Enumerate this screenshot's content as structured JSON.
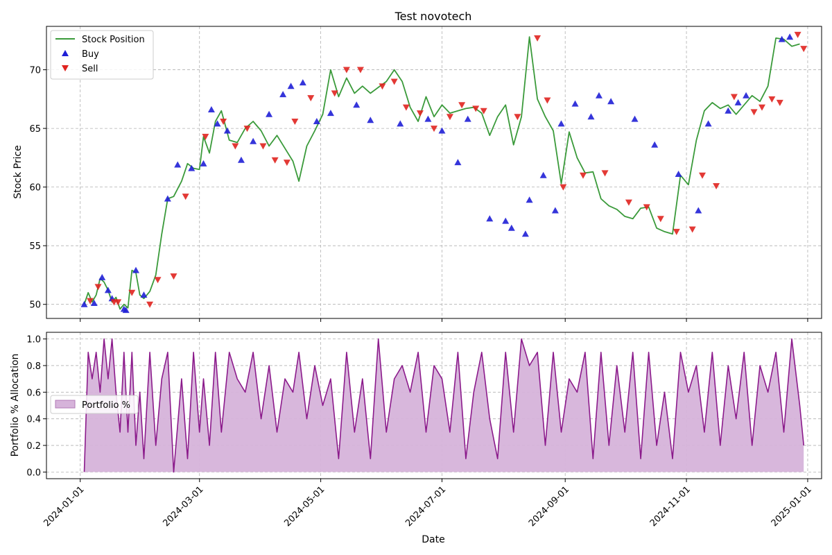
{
  "chart_data": [
    {
      "type": "line",
      "title": "Test novotech",
      "ylabel": "Stock Price",
      "xlabel": "",
      "xlim": [
        "2023-12-15",
        "2025-01-08"
      ],
      "ylim": [
        48.8,
        73.7
      ],
      "yticks": [
        50,
        55,
        60,
        65,
        70
      ],
      "grid": true,
      "legend": {
        "placement": "top-left",
        "entries": [
          "Stock Position",
          "Buy",
          "Sell"
        ]
      },
      "colors": {
        "line": "#3a9a3a",
        "buy": "#1f1fd6",
        "sell": "#e0231f"
      },
      "series": [
        {
          "name": "Stock Position",
          "x": [
            "2024-01-03",
            "2024-01-05",
            "2024-01-07",
            "2024-01-09",
            "2024-01-11",
            "2024-01-13",
            "2024-01-15",
            "2024-01-17",
            "2024-01-19",
            "2024-01-21",
            "2024-01-23",
            "2024-01-25",
            "2024-01-27",
            "2024-01-29",
            "2024-01-31",
            "2024-02-02",
            "2024-02-05",
            "2024-02-08",
            "2024-02-11",
            "2024-02-14",
            "2024-02-17",
            "2024-02-21",
            "2024-02-24",
            "2024-02-27",
            "2024-03-01",
            "2024-03-03",
            "2024-03-06",
            "2024-03-09",
            "2024-03-12",
            "2024-03-16",
            "2024-03-20",
            "2024-03-24",
            "2024-03-28",
            "2024-04-01",
            "2024-04-05",
            "2024-04-09",
            "2024-04-13",
            "2024-04-17",
            "2024-04-20",
            "2024-04-24",
            "2024-04-28",
            "2024-05-02",
            "2024-05-06",
            "2024-05-10",
            "2024-05-14",
            "2024-05-18",
            "2024-05-22",
            "2024-05-26",
            "2024-05-30",
            "2024-06-03",
            "2024-06-07",
            "2024-06-11",
            "2024-06-15",
            "2024-06-19",
            "2024-06-23",
            "2024-06-27",
            "2024-07-01",
            "2024-07-05",
            "2024-07-09",
            "2024-07-13",
            "2024-07-17",
            "2024-07-21",
            "2024-07-25",
            "2024-07-29",
            "2024-08-02",
            "2024-08-06",
            "2024-08-10",
            "2024-08-14",
            "2024-08-18",
            "2024-08-22",
            "2024-08-26",
            "2024-08-30",
            "2024-09-03",
            "2024-09-07",
            "2024-09-11",
            "2024-09-15",
            "2024-09-19",
            "2024-09-23",
            "2024-09-27",
            "2024-10-01",
            "2024-10-05",
            "2024-10-09",
            "2024-10-13",
            "2024-10-17",
            "2024-10-21",
            "2024-10-25",
            "2024-10-29",
            "2024-11-02",
            "2024-11-06",
            "2024-11-10",
            "2024-11-14",
            "2024-11-18",
            "2024-11-22",
            "2024-11-26",
            "2024-11-30",
            "2024-12-04",
            "2024-12-08",
            "2024-12-12",
            "2024-12-16",
            "2024-12-20",
            "2024-12-24",
            "2024-12-28"
          ],
          "values": [
            50.0,
            51.0,
            50.2,
            50.8,
            52.2,
            51.9,
            51.2,
            50.2,
            50.6,
            49.6,
            50.0,
            49.7,
            52.9,
            52.7,
            50.8,
            50.5,
            51.1,
            52.5,
            56.0,
            59.0,
            59.2,
            60.5,
            62.0,
            61.6,
            61.5,
            64.3,
            62.9,
            65.6,
            66.5,
            64.0,
            63.8,
            65.0,
            65.6,
            64.8,
            63.5,
            64.4,
            63.3,
            62.2,
            60.5,
            63.5,
            64.8,
            66.2,
            70.0,
            67.7,
            69.3,
            68.0,
            68.6,
            68.0,
            68.5,
            69.0,
            70.0,
            69.0,
            66.8,
            65.6,
            67.7,
            66.0,
            67.0,
            66.3,
            66.5,
            66.7,
            66.8,
            66.3,
            64.4,
            66.0,
            67.0,
            63.6,
            66.0,
            72.8,
            67.5,
            66.0,
            64.8,
            60.3,
            64.7,
            62.5,
            61.2,
            61.3,
            59.0,
            58.4,
            58.1,
            57.5,
            57.3,
            58.2,
            58.3,
            56.5,
            56.2,
            56.0,
            61.0,
            60.2,
            64.0,
            66.5,
            67.2,
            66.7,
            67.0,
            66.2,
            67.0,
            67.8,
            67.3,
            68.6,
            72.7,
            72.6,
            72.0,
            72.2
          ]
        },
        {
          "name": "Buy",
          "x": [
            "2024-01-03",
            "2024-01-08",
            "2024-01-12",
            "2024-01-15",
            "2024-01-17",
            "2024-01-23",
            "2024-01-24",
            "2024-01-29",
            "2024-02-02",
            "2024-02-14",
            "2024-02-19",
            "2024-02-26",
            "2024-03-03",
            "2024-03-07",
            "2024-03-10",
            "2024-03-15",
            "2024-03-22",
            "2024-03-28",
            "2024-04-05",
            "2024-04-12",
            "2024-04-16",
            "2024-04-22",
            "2024-04-29",
            "2024-05-06",
            "2024-05-19",
            "2024-05-26",
            "2024-06-10",
            "2024-06-24",
            "2024-07-01",
            "2024-07-09",
            "2024-07-14",
            "2024-07-25",
            "2024-08-02",
            "2024-08-05",
            "2024-08-12",
            "2024-08-14",
            "2024-08-21",
            "2024-08-27",
            "2024-08-30",
            "2024-09-06",
            "2024-09-14",
            "2024-09-18",
            "2024-09-24",
            "2024-10-06",
            "2024-10-16",
            "2024-10-28",
            "2024-11-07",
            "2024-11-12",
            "2024-11-22",
            "2024-11-27",
            "2024-12-01",
            "2024-12-19",
            "2024-12-23"
          ],
          "values": [
            50.0,
            50.1,
            52.3,
            51.2,
            50.5,
            49.6,
            49.5,
            52.9,
            50.8,
            59.0,
            61.9,
            61.6,
            62.0,
            66.6,
            65.4,
            64.8,
            62.3,
            63.9,
            66.2,
            67.9,
            68.6,
            68.9,
            65.6,
            66.3,
            67.0,
            65.7,
            65.4,
            65.8,
            64.8,
            62.1,
            65.8,
            57.3,
            57.1,
            56.5,
            56.0,
            58.9,
            61.0,
            58.0,
            65.4,
            67.1,
            66.0,
            67.8,
            67.3,
            65.8,
            63.6,
            61.1,
            58.0,
            65.4,
            66.5,
            67.2,
            67.8,
            72.6,
            72.8
          ]
        },
        {
          "name": "Sell",
          "x": [
            "2024-01-06",
            "2024-01-10",
            "2024-01-18",
            "2024-01-20",
            "2024-01-27",
            "2024-02-05",
            "2024-02-09",
            "2024-02-17",
            "2024-02-23",
            "2024-03-04",
            "2024-03-13",
            "2024-03-19",
            "2024-03-25",
            "2024-04-02",
            "2024-04-08",
            "2024-04-14",
            "2024-04-18",
            "2024-04-26",
            "2024-05-08",
            "2024-05-14",
            "2024-05-21",
            "2024-06-01",
            "2024-06-07",
            "2024-06-13",
            "2024-06-20",
            "2024-06-27",
            "2024-07-05",
            "2024-07-11",
            "2024-07-18",
            "2024-07-22",
            "2024-08-08",
            "2024-08-18",
            "2024-08-23",
            "2024-08-31",
            "2024-09-10",
            "2024-09-21",
            "2024-10-03",
            "2024-10-12",
            "2024-10-19",
            "2024-10-27",
            "2024-11-04",
            "2024-11-09",
            "2024-11-16",
            "2024-11-25",
            "2024-12-05",
            "2024-12-09",
            "2024-12-14",
            "2024-12-18",
            "2024-12-27",
            "2024-12-30"
          ],
          "values": [
            50.3,
            51.5,
            50.2,
            50.2,
            51.0,
            50.0,
            52.1,
            52.4,
            59.2,
            64.3,
            65.6,
            63.5,
            65.0,
            63.5,
            62.3,
            62.1,
            65.6,
            67.6,
            68.0,
            70.0,
            70.0,
            68.6,
            69.0,
            66.8,
            66.3,
            65.0,
            66.0,
            67.0,
            66.7,
            66.5,
            66.0,
            72.7,
            67.4,
            60.0,
            61.0,
            61.2,
            58.7,
            58.3,
            57.3,
            56.2,
            56.4,
            61.0,
            60.1,
            67.7,
            66.4,
            66.8,
            67.5,
            67.2,
            73.0,
            71.8
          ]
        }
      ]
    },
    {
      "type": "area",
      "ylabel": "Portfolio % Allocation",
      "xlabel": "Date",
      "xlim": [
        "2023-12-15",
        "2025-01-08"
      ],
      "ylim": [
        -0.05,
        1.05
      ],
      "yticks": [
        "0.0",
        "0.2",
        "0.4",
        "0.6",
        "0.8",
        "1.0"
      ],
      "xticks": [
        "2024-01-01",
        "2024-03-01",
        "2024-05-01",
        "2024-07-01",
        "2024-09-01",
        "2024-11-01",
        "2025-01-01"
      ],
      "grid": true,
      "legend": {
        "placement": "center-left",
        "entries": [
          "Portfolio %"
        ]
      },
      "colors": {
        "line": "#8b1a8b",
        "fill": "#d6b3da"
      },
      "series": [
        {
          "name": "Portfolio %",
          "x": [
            "2024-01-03",
            "2024-01-05",
            "2024-01-07",
            "2024-01-09",
            "2024-01-11",
            "2024-01-13",
            "2024-01-15",
            "2024-01-17",
            "2024-01-19",
            "2024-01-21",
            "2024-01-23",
            "2024-01-25",
            "2024-01-27",
            "2024-01-29",
            "2024-01-31",
            "2024-02-02",
            "2024-02-05",
            "2024-02-08",
            "2024-02-11",
            "2024-02-14",
            "2024-02-17",
            "2024-02-21",
            "2024-02-24",
            "2024-02-27",
            "2024-03-01",
            "2024-03-03",
            "2024-03-06",
            "2024-03-09",
            "2024-03-12",
            "2024-03-16",
            "2024-03-20",
            "2024-03-24",
            "2024-03-28",
            "2024-04-01",
            "2024-04-05",
            "2024-04-09",
            "2024-04-13",
            "2024-04-17",
            "2024-04-20",
            "2024-04-24",
            "2024-04-28",
            "2024-05-02",
            "2024-05-06",
            "2024-05-10",
            "2024-05-14",
            "2024-05-18",
            "2024-05-22",
            "2024-05-26",
            "2024-05-30",
            "2024-06-03",
            "2024-06-07",
            "2024-06-11",
            "2024-06-15",
            "2024-06-19",
            "2024-06-23",
            "2024-06-27",
            "2024-07-01",
            "2024-07-05",
            "2024-07-09",
            "2024-07-13",
            "2024-07-17",
            "2024-07-21",
            "2024-07-25",
            "2024-07-29",
            "2024-08-02",
            "2024-08-06",
            "2024-08-10",
            "2024-08-14",
            "2024-08-18",
            "2024-08-22",
            "2024-08-26",
            "2024-08-30",
            "2024-09-03",
            "2024-09-07",
            "2024-09-11",
            "2024-09-15",
            "2024-09-19",
            "2024-09-23",
            "2024-09-27",
            "2024-10-01",
            "2024-10-05",
            "2024-10-09",
            "2024-10-13",
            "2024-10-17",
            "2024-10-21",
            "2024-10-25",
            "2024-10-29",
            "2024-11-02",
            "2024-11-06",
            "2024-11-10",
            "2024-11-14",
            "2024-11-18",
            "2024-11-22",
            "2024-11-26",
            "2024-11-30",
            "2024-12-04",
            "2024-12-08",
            "2024-12-12",
            "2024-12-16",
            "2024-12-20",
            "2024-12-24",
            "2024-12-28",
            "2024-12-30"
          ],
          "values": [
            0.0,
            0.9,
            0.7,
            0.9,
            0.6,
            1.0,
            0.7,
            1.0,
            0.6,
            0.3,
            0.9,
            0.3,
            0.9,
            0.2,
            0.6,
            0.1,
            0.9,
            0.2,
            0.7,
            0.9,
            0.0,
            0.7,
            0.1,
            0.9,
            0.3,
            0.7,
            0.2,
            0.9,
            0.3,
            0.9,
            0.7,
            0.6,
            0.9,
            0.4,
            0.8,
            0.3,
            0.7,
            0.6,
            0.9,
            0.4,
            0.8,
            0.5,
            0.7,
            0.1,
            0.9,
            0.3,
            0.7,
            0.1,
            1.0,
            0.3,
            0.7,
            0.8,
            0.6,
            0.9,
            0.3,
            0.8,
            0.7,
            0.3,
            0.9,
            0.1,
            0.6,
            0.9,
            0.4,
            0.1,
            0.9,
            0.3,
            1.0,
            0.8,
            0.9,
            0.2,
            0.9,
            0.3,
            0.7,
            0.6,
            0.9,
            0.1,
            0.9,
            0.2,
            0.8,
            0.3,
            0.9,
            0.1,
            0.9,
            0.2,
            0.6,
            0.1,
            0.9,
            0.6,
            0.8,
            0.3,
            0.9,
            0.2,
            0.8,
            0.4,
            0.9,
            0.2,
            0.8,
            0.6,
            0.9,
            0.3,
            1.0,
            0.5,
            0.2
          ]
        }
      ]
    }
  ]
}
